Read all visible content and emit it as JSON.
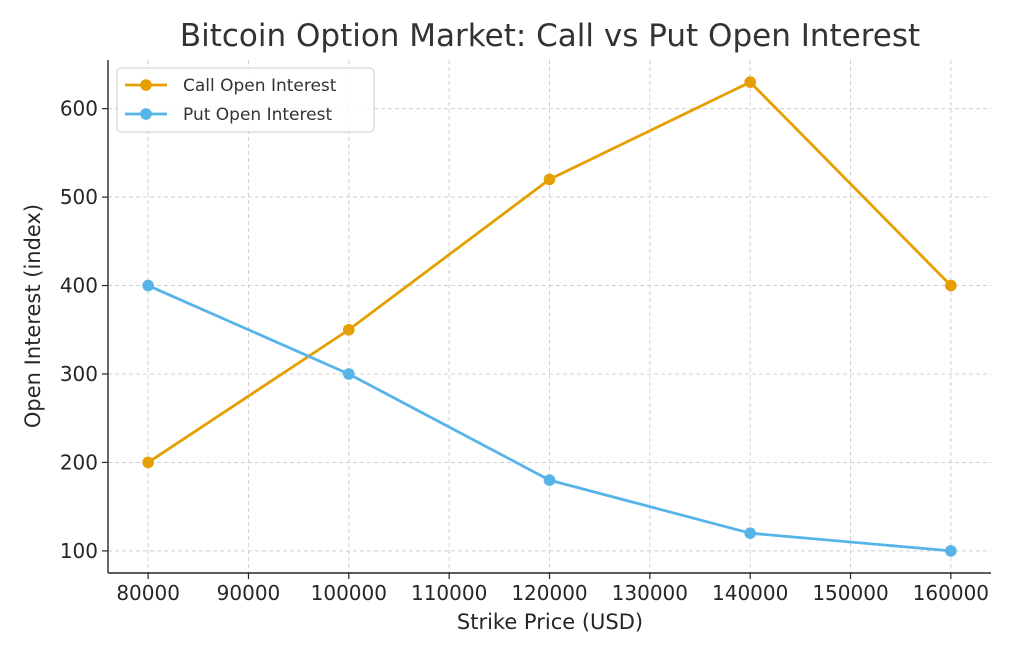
{
  "chart_data": {
    "type": "line",
    "title": "Bitcoin Option Market: Call vs Put Open Interest",
    "xlabel": "Strike Price (USD)",
    "ylabel": "Open Interest (index)",
    "x": [
      80000,
      100000,
      120000,
      140000,
      160000
    ],
    "xlim": [
      76000,
      164000
    ],
    "ylim": [
      75,
      655
    ],
    "xticks": [
      "80000",
      "90000",
      "100000",
      "110000",
      "120000",
      "130000",
      "140000",
      "150000",
      "160000"
    ],
    "yticks": [
      "100",
      "200",
      "300",
      "400",
      "500",
      "600"
    ],
    "grid": true,
    "legend_position": "top-left",
    "series": [
      {
        "name": "Call Open Interest",
        "color": "#E69F00",
        "values": [
          200,
          350,
          520,
          630,
          400
        ]
      },
      {
        "name": "Put Open Interest",
        "color": "#56B4E9",
        "values": [
          400,
          300,
          180,
          120,
          100
        ]
      }
    ]
  }
}
